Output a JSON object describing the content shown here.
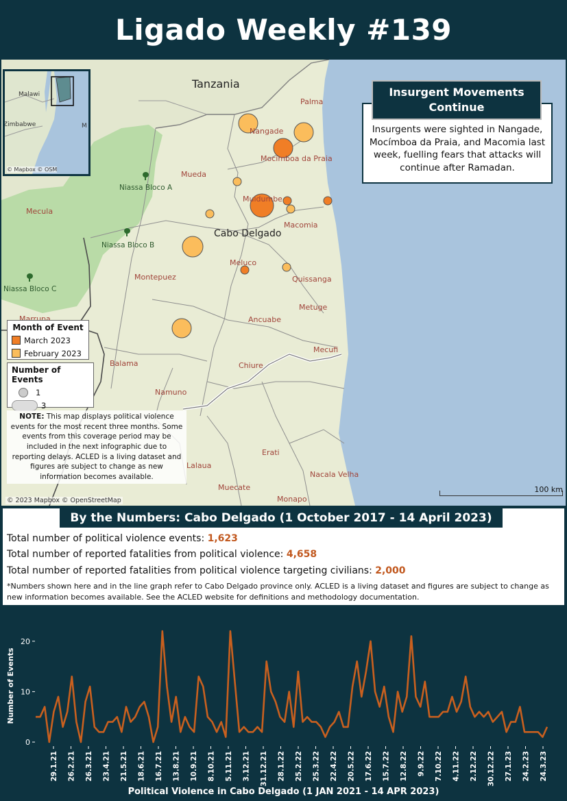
{
  "header": {
    "title": "Ligado Weekly #139"
  },
  "map": {
    "labels": {
      "country": "Tanzania",
      "province": "Cabo Delgado",
      "places": [
        {
          "name": "Palma"
        },
        {
          "name": "Nangade"
        },
        {
          "name": "Mocímboa da Praia"
        },
        {
          "name": "Mueda"
        },
        {
          "name": "Muidumbe"
        },
        {
          "name": "Macomia"
        },
        {
          "name": "Meluco"
        },
        {
          "name": "Quissanga"
        },
        {
          "name": "Montepuez"
        },
        {
          "name": "Metuge"
        },
        {
          "name": "Ancuabe"
        },
        {
          "name": "Mecufi"
        },
        {
          "name": "Chiure"
        },
        {
          "name": "Balama"
        },
        {
          "name": "Namuno"
        },
        {
          "name": "Erati"
        },
        {
          "name": "Nacala Velha"
        },
        {
          "name": "Muecate"
        },
        {
          "name": "Monapo"
        },
        {
          "name": "Mecula"
        },
        {
          "name": "Marrupa"
        },
        {
          "name": "Lalaua"
        }
      ],
      "reserves": [
        "Niassa Bloco A",
        "Niassa Bloco B",
        "Niassa Bloco C"
      ]
    },
    "inset": {
      "labels": [
        "Malawi",
        "Zimbabwe",
        "M"
      ],
      "credit": "© Mapbox © OSM"
    },
    "callout": {
      "title": "Insurgent Movements Continue",
      "body": "Insurgents were sighted in Nangade, Mocímboa da Praia, and Macomia last week, fuelling fears that attacks will continue after Ramadan."
    },
    "legend_month": {
      "title": "Month of Event",
      "items": [
        {
          "label": "March 2023",
          "color": "#f07e26"
        },
        {
          "label": "February 2023",
          "color": "#fbbd5c"
        }
      ]
    },
    "legend_size": {
      "title": "Number of Events",
      "items": [
        {
          "label": "1"
        },
        {
          "label": "3"
        }
      ]
    },
    "note": {
      "label": "NOTE:",
      "text": "This map displays political violence events for the most recent three months. Some events from this coverage period may be included in the next infographic due to reporting delays. ACLED is a living dataset and figures are subject to change as new information becomes available."
    },
    "credit": "© 2023 Mapbox © OpenStreetMap",
    "scale": "100 km"
  },
  "numbers": {
    "title": "By the Numbers: Cabo Delgado (1 October 2017 - 14 April 2023)",
    "rows": [
      {
        "label": "Total number of political violence events: ",
        "value": "1,623"
      },
      {
        "label": "Total number of reported fatalities from political violence: ",
        "value": "4,658"
      },
      {
        "label": "Total number of reported fatalities from political violence targeting civilians: ",
        "value": "2,000"
      }
    ],
    "footnote": "*Numbers shown here and in the line graph refer to Cabo Delgado province only. ACLED is a living dataset and figures are subject to change as new information becomes available. See the ACLED website for definitions and methodology documentation."
  },
  "chart_data": {
    "type": "line",
    "title": "Political Violence in Cabo Delgado (1 JAN 2021 - 14 APR 2023)",
    "ylabel": "Number of Events",
    "ylim": [
      0,
      25
    ],
    "yticks": [
      0,
      10,
      20
    ],
    "x_ticks": [
      "29.1.21",
      "26.2.21",
      "26.3.21",
      "23.4.21",
      "21.5.21",
      "18.6.21",
      "16.7.21",
      "13.8.21",
      "10.9.21",
      "8.10.21",
      "5.11.21",
      "3.12.21",
      "31.12.21",
      "28.1.22",
      "25.2.22",
      "25.3.22",
      "22.4.22",
      "20.5.22",
      "17.6.22",
      "15.7.22",
      "12.8.22",
      "9.9.22",
      "7.10.22",
      "4.11.22",
      "2.12.22",
      "30.12.22",
      "27.1.23",
      "24.2.23",
      "24.3.23"
    ],
    "color": "#c9601f",
    "series": [
      {
        "values": [
          5,
          5,
          7,
          0,
          6,
          9,
          3,
          6,
          13,
          4,
          0,
          8,
          11,
          3,
          2,
          2,
          4,
          4,
          5,
          2,
          7,
          4,
          5,
          7,
          8,
          5,
          0,
          3,
          22,
          11,
          4,
          9,
          2,
          5,
          3,
          2,
          13,
          11,
          5,
          4,
          2,
          4,
          1,
          22,
          12,
          2,
          3,
          2,
          2,
          3,
          2,
          16,
          10,
          8,
          5,
          4,
          10,
          3,
          14,
          4,
          5,
          4,
          4,
          3,
          1,
          3,
          4,
          6,
          3,
          3,
          11,
          16,
          9,
          14,
          20,
          10,
          7,
          11,
          5,
          2,
          10,
          6,
          9,
          21,
          9,
          7,
          12,
          5,
          5,
          5,
          6,
          6,
          9,
          6,
          8,
          13,
          7,
          5,
          6,
          5,
          6,
          4,
          5,
          6,
          2,
          4,
          4,
          7,
          2,
          2,
          2,
          2,
          1,
          3
        ]
      }
    ]
  }
}
